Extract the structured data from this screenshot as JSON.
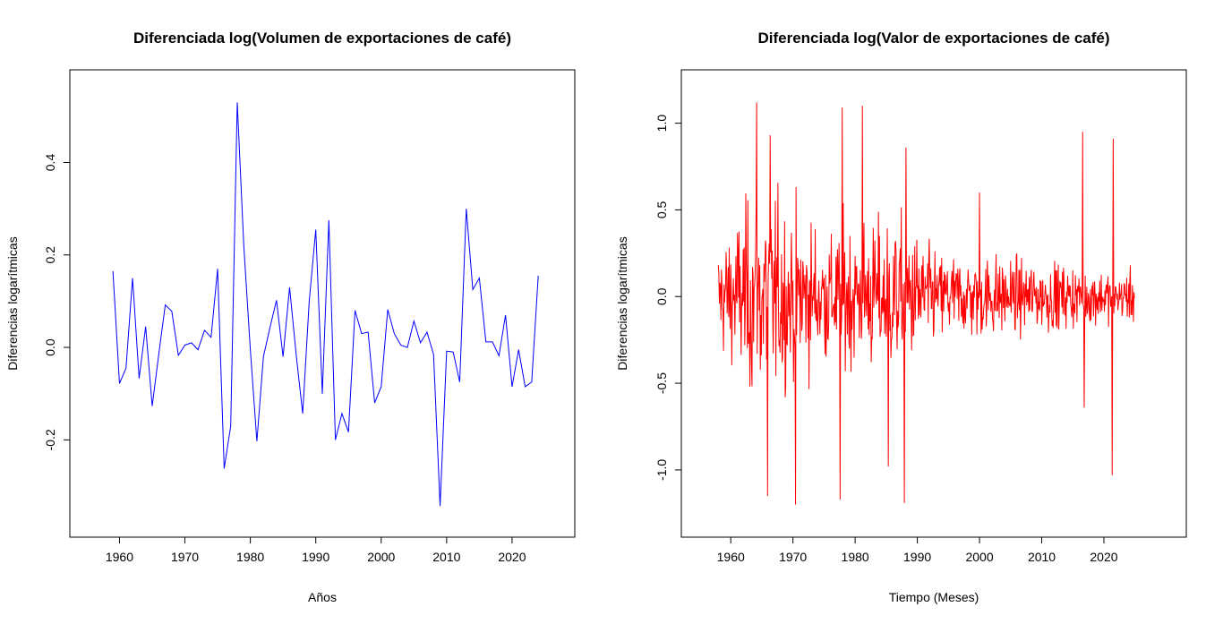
{
  "chart_data": [
    {
      "type": "line",
      "title": "Diferenciada log(Volumen de exportaciones de café)",
      "xlabel": "Años",
      "ylabel": "Diferencias logarítmicas",
      "xlim": [
        1955.5,
        2026.5
      ],
      "ylim": [
        -0.37,
        0.56
      ],
      "xticks": [
        1960,
        1970,
        1980,
        1990,
        2000,
        2010,
        2020
      ],
      "xtick_labels": [
        "1960",
        "1970",
        "1980",
        "1990",
        "2000",
        "2010",
        "2020"
      ],
      "yticks": [
        -0.2,
        0.0,
        0.2,
        0.4
      ],
      "ytick_labels": [
        "-0.2",
        "0.0",
        "0.2",
        "0.4"
      ],
      "grid": false,
      "series": [
        {
          "color": "#0000ff",
          "x": [
            1959,
            1960,
            1961,
            1962,
            1963,
            1964,
            1965,
            1966,
            1967,
            1968,
            1969,
            1970,
            1971,
            1972,
            1973,
            1974,
            1975,
            1976,
            1977,
            1978,
            1979,
            1980,
            1981,
            1982,
            1983,
            1984,
            1985,
            1986,
            1987,
            1988,
            1989,
            1990,
            1991,
            1992,
            1993,
            1994,
            1995,
            1996,
            1997,
            1998,
            1999,
            2000,
            2001,
            2002,
            2003,
            2004,
            2005,
            2006,
            2007,
            2008,
            2009,
            2010,
            2011,
            2012,
            2013,
            2014,
            2015,
            2016,
            2017,
            2018,
            2019,
            2020,
            2021,
            2022,
            2023,
            2024
          ],
          "values": [
            0.165,
            -0.078,
            -0.045,
            0.15,
            -0.067,
            0.045,
            -0.127,
            -0.015,
            0.092,
            0.078,
            -0.017,
            0.005,
            0.01,
            -0.005,
            0.037,
            0.022,
            0.17,
            -0.262,
            -0.17,
            0.53,
            0.22,
            -0.005,
            -0.203,
            -0.02,
            0.043,
            0.102,
            -0.02,
            0.13,
            -0.015,
            -0.143,
            0.1,
            0.255,
            -0.1,
            0.275,
            -0.2,
            -0.143,
            -0.183,
            0.08,
            0.03,
            0.033,
            -0.12,
            -0.085,
            0.082,
            0.03,
            0.005,
            0.0,
            0.057,
            0.01,
            0.033,
            -0.015,
            -0.343,
            -0.008,
            -0.01,
            -0.075,
            0.3,
            0.125,
            0.15,
            0.012,
            0.012,
            -0.018,
            0.07,
            -0.085,
            -0.005,
            -0.085,
            -0.075,
            0.155
          ]
        }
      ]
    },
    {
      "type": "line",
      "title": "Diferenciada log(Valor de exportaciones de café)",
      "xlabel": "Tiempo (Meses)",
      "ylabel": "Diferencias logarítmicas",
      "xlim": [
        1955.3,
        2030.0
      ],
      "ylim": [
        -1.28,
        1.2
      ],
      "xticks": [
        1960,
        1970,
        1980,
        1990,
        2000,
        2010,
        2020
      ],
      "xtick_labels": [
        "1960",
        "1970",
        "1980",
        "1990",
        "2000",
        "2010",
        "2020"
      ],
      "yticks": [
        -1.0,
        -0.5,
        0.0,
        0.5,
        1.0
      ],
      "ytick_labels": [
        "-1.0",
        "-0.5",
        "0.0",
        "0.5",
        "1.0"
      ],
      "grid": false,
      "frequency": "monthly",
      "series": [
        {
          "color": "#ff0000",
          "start": 1958.0,
          "end": 2024.9,
          "envelope_years": [
            1958,
            1960,
            1962,
            1964,
            1966,
            1968,
            1970,
            1972,
            1974,
            1976,
            1978,
            1980,
            1982,
            1984,
            1986,
            1988,
            1990,
            1992,
            1994,
            1996,
            1998,
            2000,
            2002,
            2004,
            2006,
            2008,
            2010,
            2012,
            2014,
            2016,
            2018,
            2020,
            2022,
            2024
          ],
          "envelope_amplitude": [
            0.35,
            0.5,
            0.6,
            0.75,
            0.75,
            0.65,
            0.6,
            0.55,
            0.5,
            0.45,
            0.5,
            0.55,
            0.5,
            0.55,
            0.55,
            0.5,
            0.45,
            0.35,
            0.3,
            0.3,
            0.3,
            0.3,
            0.3,
            0.3,
            0.25,
            0.25,
            0.25,
            0.25,
            0.22,
            0.2,
            0.2,
            0.2,
            0.18,
            0.18
          ],
          "spikes": [
            {
              "x": 1964.2,
              "y": 1.12
            },
            {
              "x": 1965.9,
              "y": -1.15
            },
            {
              "x": 1966.3,
              "y": 0.93
            },
            {
              "x": 1970.4,
              "y": -1.2
            },
            {
              "x": 1977.6,
              "y": -1.17
            },
            {
              "x": 1977.9,
              "y": 1.09
            },
            {
              "x": 1981.2,
              "y": 1.1
            },
            {
              "x": 1985.3,
              "y": -0.98
            },
            {
              "x": 1987.9,
              "y": -1.19
            },
            {
              "x": 1988.2,
              "y": 0.86
            },
            {
              "x": 2000.0,
              "y": 0.6
            },
            {
              "x": 2016.6,
              "y": 0.95
            },
            {
              "x": 2016.8,
              "y": -0.64
            },
            {
              "x": 2021.3,
              "y": -1.03
            },
            {
              "x": 2021.5,
              "y": 0.91
            }
          ]
        }
      ]
    }
  ]
}
